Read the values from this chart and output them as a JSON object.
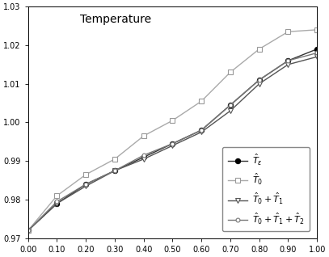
{
  "title": "Temperature",
  "xlim": [
    0.0,
    1.0
  ],
  "ylim": [
    0.97,
    1.03
  ],
  "xticks": [
    0.0,
    0.1,
    0.2,
    0.3,
    0.4,
    0.5,
    0.6,
    0.7,
    0.8,
    0.9,
    1.0
  ],
  "yticks": [
    0.97,
    0.98,
    0.99,
    1.0,
    1.01,
    1.02,
    1.03
  ],
  "x": [
    0.0,
    0.1,
    0.2,
    0.3,
    0.4,
    0.5,
    0.6,
    0.7,
    0.8,
    0.9,
    1.0
  ],
  "T_eps": [
    0.972,
    0.979,
    0.984,
    0.9875,
    0.991,
    0.9945,
    0.998,
    1.0045,
    1.011,
    1.016,
    1.019
  ],
  "T0": [
    0.972,
    0.981,
    0.9865,
    0.9905,
    0.9965,
    1.0005,
    1.0055,
    1.013,
    1.019,
    1.0235,
    1.024
  ],
  "T01": [
    0.972,
    0.979,
    0.9835,
    0.9875,
    0.9905,
    0.994,
    0.9975,
    1.003,
    1.01,
    1.015,
    1.017
  ],
  "T012": [
    0.972,
    0.9795,
    0.984,
    0.9875,
    0.9915,
    0.9945,
    0.998,
    1.0045,
    1.011,
    1.016,
    1.018
  ],
  "color_eps": "#333333",
  "color_T0": "#aaaaaa",
  "color_T01": "#555555",
  "color_T012": "#777777",
  "legend_labels": [
    "$\\hat{T}_{\\varepsilon}$",
    "$\\hat{T}_0$",
    "$\\hat{T}_0 + \\hat{T}_1$",
    "$\\hat{T}_0 + \\hat{T}_1 + \\hat{T}_2$"
  ],
  "title_fontsize": 10,
  "tick_fontsize": 7,
  "legend_fontsize": 8,
  "background_color": "#ffffff"
}
